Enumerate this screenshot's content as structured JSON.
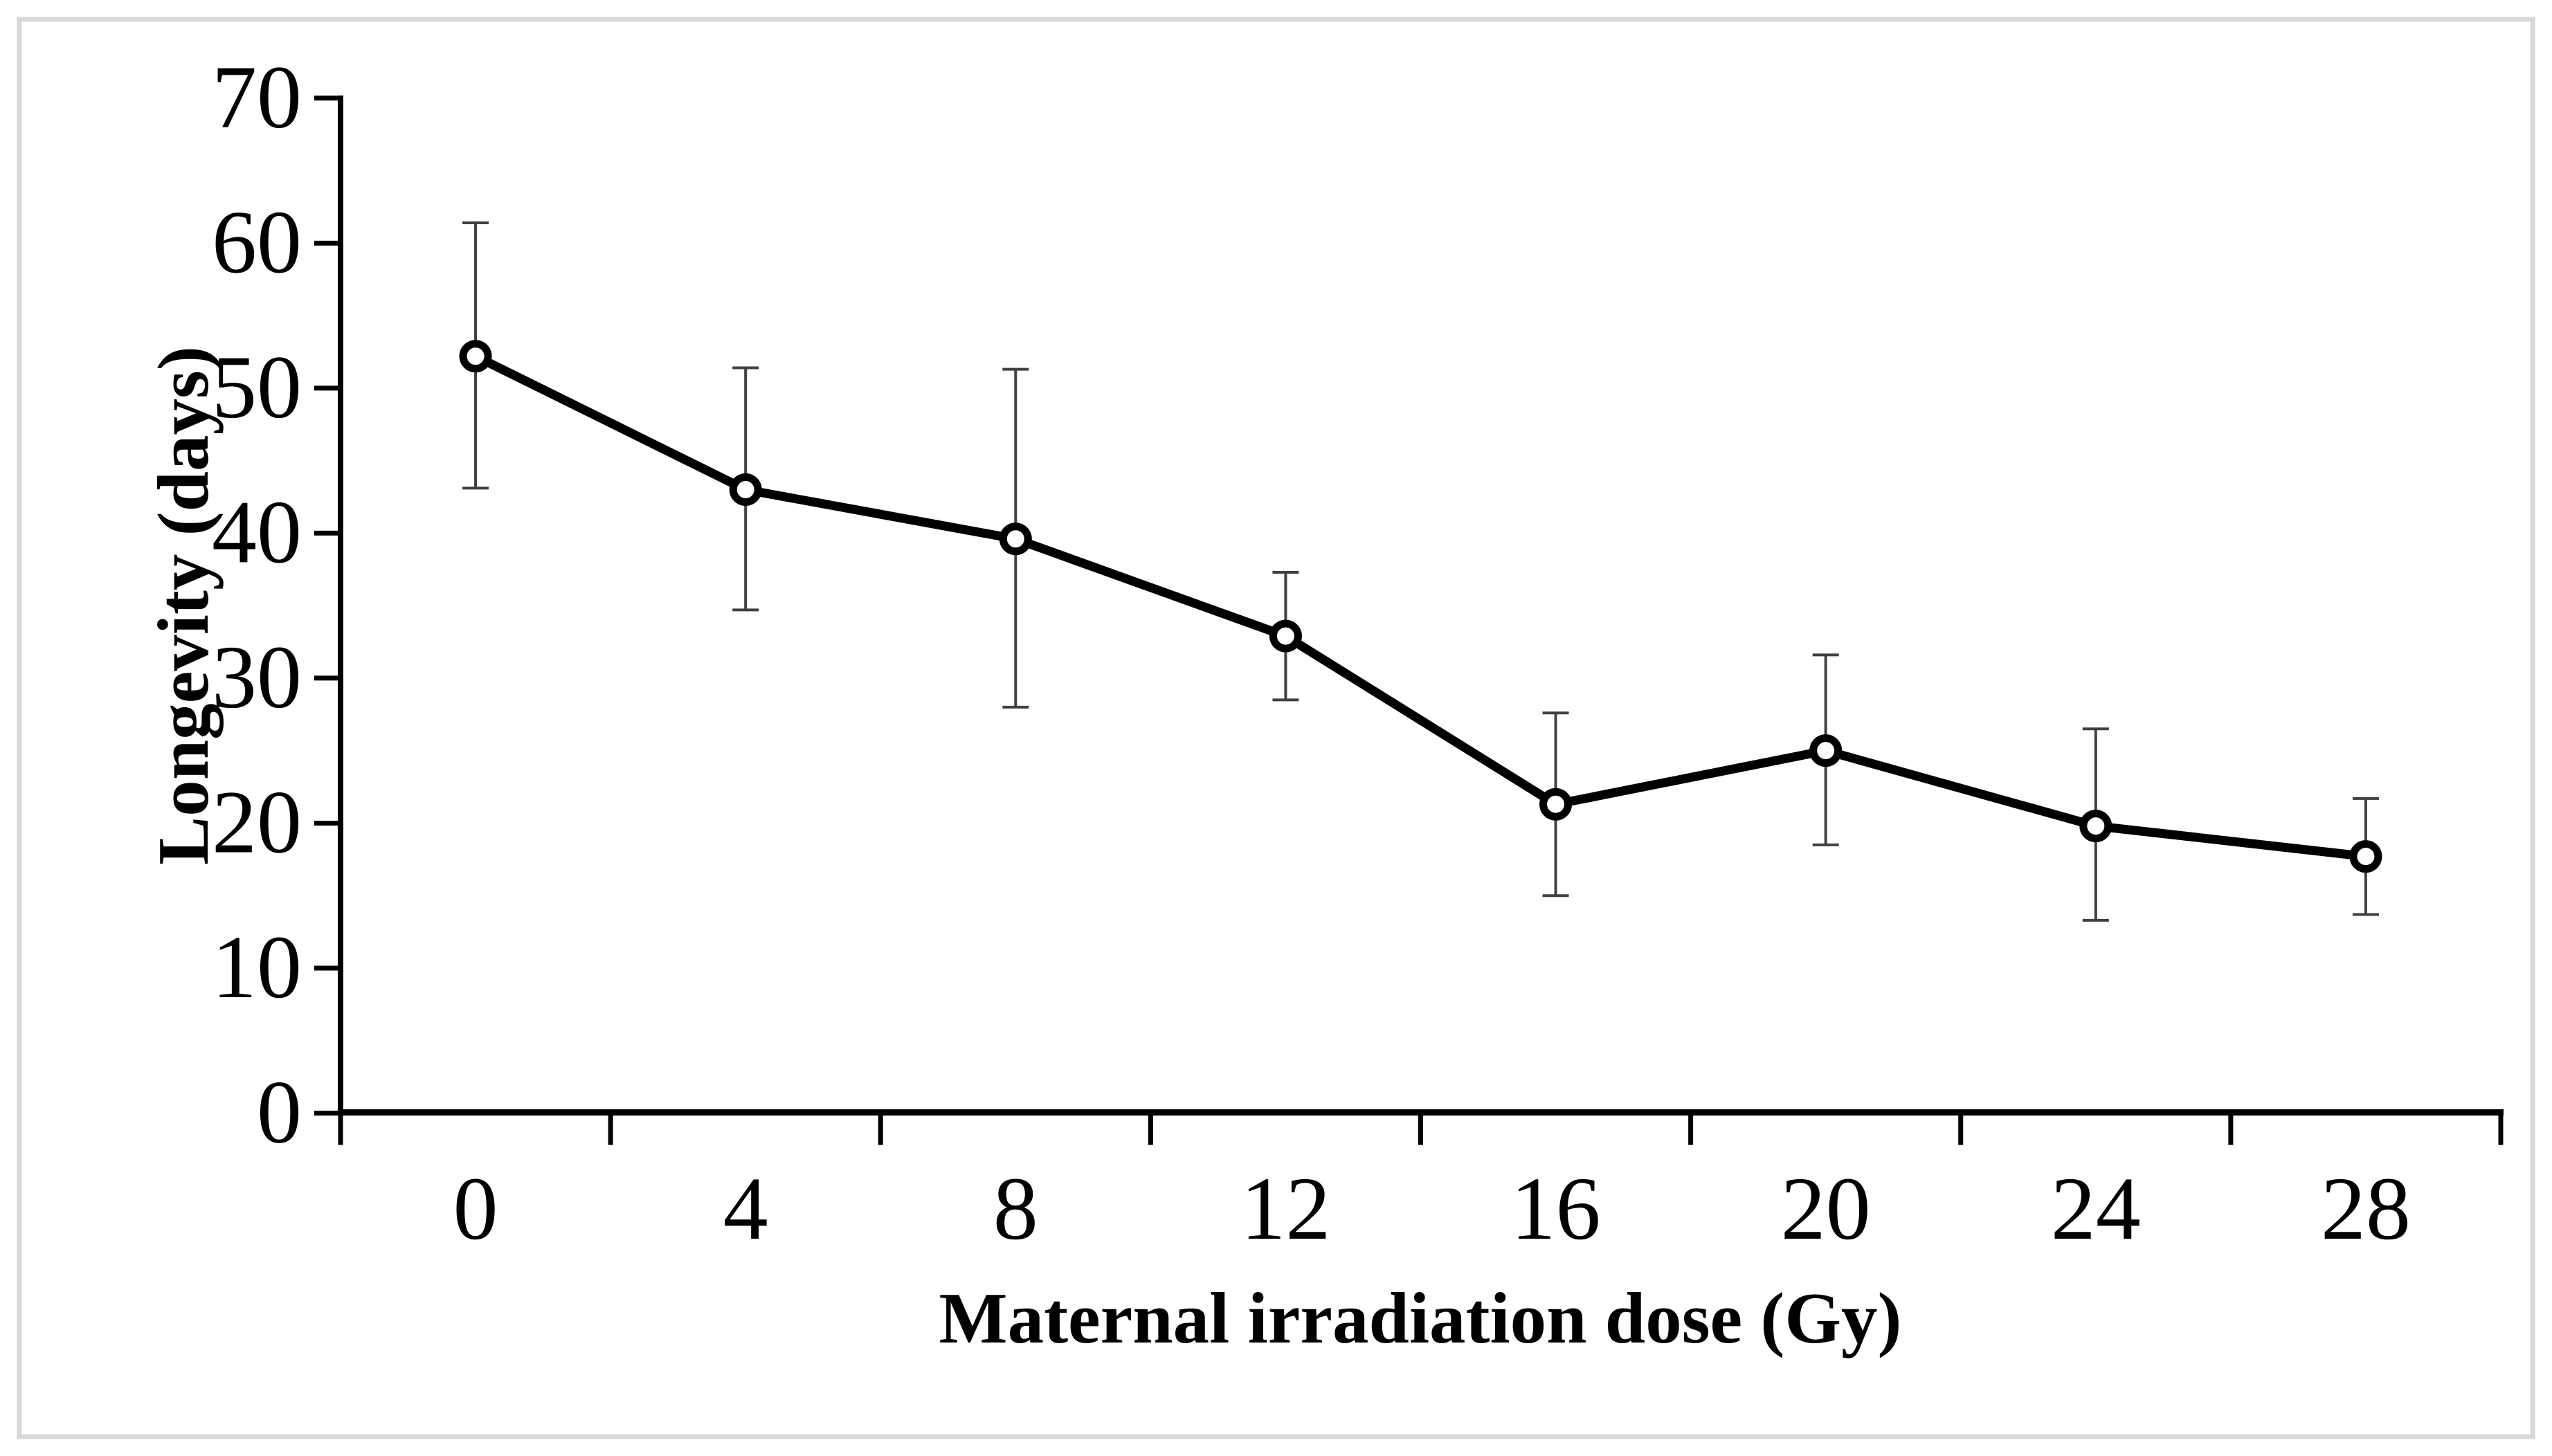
{
  "frame": {
    "border_color": "#d9d9d9",
    "background": "#ffffff"
  },
  "chart_data": {
    "type": "line",
    "title": "",
    "xlabel": "Maternal irradiation dose (Gy)",
    "ylabel": "Longevity (days)",
    "categories": [
      "0",
      "4",
      "8",
      "12",
      "16",
      "20",
      "24",
      "28"
    ],
    "series": [
      {
        "name": "Longevity",
        "values": [
          52.2,
          43.0,
          39.6,
          32.9,
          21.3,
          25.0,
          19.8,
          17.7
        ],
        "error_low": [
          43.1,
          34.7,
          28.0,
          28.5,
          15.0,
          18.5,
          13.3,
          13.7
        ],
        "error_high": [
          61.4,
          51.4,
          51.3,
          37.3,
          27.6,
          31.6,
          26.5,
          21.7
        ]
      }
    ],
    "ylim": [
      0,
      70
    ],
    "y_ticks": [
      0,
      10,
      20,
      30,
      40,
      50,
      60,
      70
    ],
    "grid": false,
    "legend": false,
    "marker": "open-circle",
    "marker_fill": "#ffffff",
    "line_color": "#000000",
    "axis_color": "#000000",
    "error_bar_color": "#404040"
  }
}
